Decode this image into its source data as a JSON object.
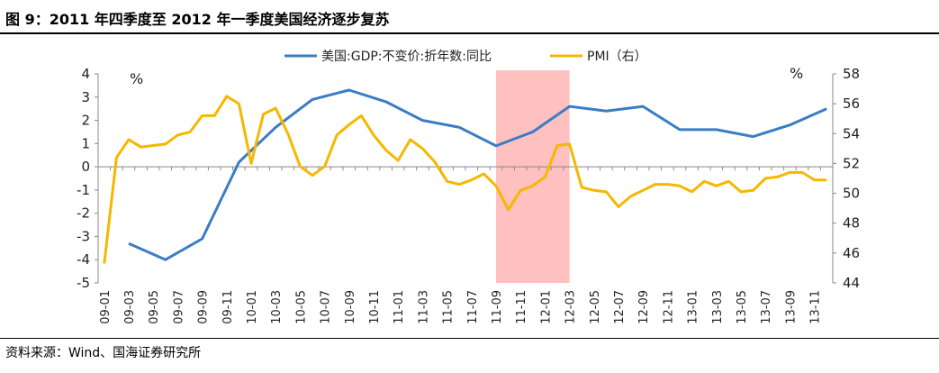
{
  "figure": {
    "title": "图 9：2011 年四季度至 2012 年一季度美国经济逐步复苏",
    "source": "资料来源：Wind、国海证券研究所"
  },
  "chart_data": {
    "type": "line",
    "categories": [
      "09-01",
      "09-02",
      "09-03",
      "09-04",
      "09-05",
      "09-06",
      "09-07",
      "09-08",
      "09-09",
      "09-10",
      "09-11",
      "09-12",
      "10-01",
      "10-02",
      "10-03",
      "10-04",
      "10-05",
      "10-06",
      "10-07",
      "10-08",
      "10-09",
      "10-10",
      "10-11",
      "10-12",
      "11-01",
      "11-02",
      "11-03",
      "11-04",
      "11-05",
      "11-06",
      "11-07",
      "11-08",
      "11-09",
      "11-10",
      "11-11",
      "11-12",
      "12-01",
      "12-02",
      "12-03",
      "12-04",
      "12-05",
      "12-06",
      "12-07",
      "12-08",
      "12-09",
      "12-10",
      "12-11",
      "12-12",
      "13-01",
      "13-02",
      "13-03",
      "13-04",
      "13-05",
      "13-06",
      "13-07",
      "13-08",
      "13-09",
      "13-10",
      "13-11",
      "13-12"
    ],
    "tick_labels": [
      "09-01",
      "09-03",
      "09-05",
      "09-07",
      "09-09",
      "09-11",
      "10-01",
      "10-03",
      "10-05",
      "10-07",
      "10-09",
      "10-11",
      "11-01",
      "11-03",
      "11-05",
      "11-07",
      "11-09",
      "11-11",
      "12-01",
      "12-03",
      "12-05",
      "12-07",
      "12-09",
      "12-11",
      "13-01",
      "13-03",
      "13-05",
      "13-07",
      "13-09",
      "13-11"
    ],
    "y_left": {
      "min": -5,
      "max": 4,
      "step": 1,
      "unit": "%"
    },
    "y_right": {
      "min": 44,
      "max": 58,
      "step": 2,
      "unit": "%"
    },
    "shaded_region": {
      "from": "11-09",
      "to": "12-03",
      "color": "#ffc0c0"
    },
    "series": [
      {
        "name": "美国:GDP:不变价:折年数:同比",
        "axis": "left",
        "color": "#3b7dc4",
        "points": [
          [
            "09-03",
            -3.3
          ],
          [
            "09-06",
            -4.0
          ],
          [
            "09-09",
            -3.1
          ],
          [
            "09-12",
            0.2
          ],
          [
            "10-03",
            1.7
          ],
          [
            "10-06",
            2.9
          ],
          [
            "10-09",
            3.3
          ],
          [
            "10-12",
            2.8
          ],
          [
            "11-03",
            2.0
          ],
          [
            "11-06",
            1.7
          ],
          [
            "11-09",
            0.9
          ],
          [
            "11-12",
            1.5
          ],
          [
            "12-03",
            2.6
          ],
          [
            "12-06",
            2.4
          ],
          [
            "12-09",
            2.6
          ],
          [
            "12-12",
            1.6
          ],
          [
            "13-03",
            1.6
          ],
          [
            "13-06",
            1.3
          ],
          [
            "13-09",
            1.8
          ],
          [
            "13-12",
            2.5
          ]
        ]
      },
      {
        "name": "PMI（右）",
        "axis": "right",
        "color": "#f5b800",
        "values": [
          45.3,
          52.4,
          53.6,
          53.1,
          53.2,
          53.3,
          53.9,
          54.1,
          55.2,
          55.2,
          56.5,
          56.0,
          52.0,
          55.3,
          55.7,
          54.0,
          51.8,
          51.2,
          51.8,
          53.9,
          54.6,
          55.2,
          53.9,
          52.9,
          52.2,
          53.6,
          53.0,
          52.1,
          50.8,
          50.6,
          50.9,
          51.3,
          50.5,
          48.9,
          50.2,
          50.5,
          51.1,
          53.2,
          53.3,
          50.4,
          50.2,
          50.1,
          49.1,
          49.8,
          50.2,
          50.6,
          50.6,
          50.5,
          50.1,
          50.8,
          50.5,
          50.8,
          50.1,
          50.2,
          51.0,
          51.1,
          51.4,
          51.4,
          50.9,
          50.9
        ]
      }
    ]
  }
}
